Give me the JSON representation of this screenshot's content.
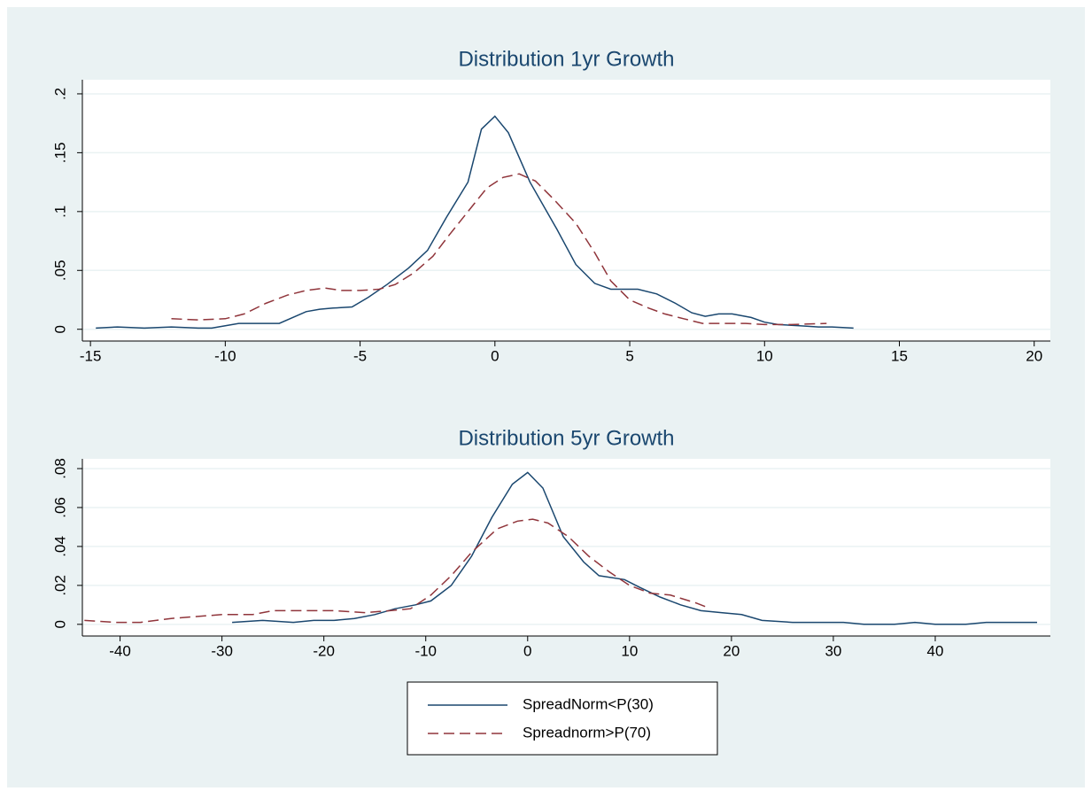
{
  "chart_data": [
    {
      "type": "line",
      "title": "Distribution 1yr Growth",
      "xlim": [
        -15.3,
        20.6
      ],
      "ylim": [
        -0.01,
        0.212
      ],
      "xticks": [
        -15,
        -10,
        -5,
        0,
        5,
        10,
        15,
        20
      ],
      "yticks": [
        0,
        {
          "value": 0.05,
          "label": ".05"
        },
        {
          "value": 0.1,
          "label": ".1"
        },
        {
          "value": 0.15,
          "label": ".15"
        },
        {
          "value": 0.2,
          "label": ".2"
        }
      ],
      "grid": true,
      "series": [
        {
          "name": "SpreadNorm<P(30)",
          "color": "#1a476f",
          "dash": "solid",
          "x": [
            -14.8,
            -14,
            -13,
            -12,
            -11,
            -10.5,
            -10,
            -9.5,
            -9,
            -8,
            -7,
            -6.5,
            -6,
            -5.3,
            -4.7,
            -4,
            -3.2,
            -2.5,
            -1.8,
            -1,
            -0.5,
            0,
            0.5,
            1.3,
            2.3,
            3,
            3.7,
            4.3,
            5.3,
            6,
            6.7,
            7.3,
            7.8,
            8.3,
            8.8,
            9.5,
            10,
            10.5,
            11.3,
            12,
            12.5,
            13.3
          ],
          "values": [
            0.001,
            0.002,
            0.001,
            0.002,
            0.001,
            0.001,
            0.003,
            0.005,
            0.005,
            0.005,
            0.015,
            0.017,
            0.018,
            0.019,
            0.027,
            0.038,
            0.052,
            0.067,
            0.095,
            0.125,
            0.17,
            0.181,
            0.167,
            0.125,
            0.085,
            0.055,
            0.039,
            0.034,
            0.034,
            0.03,
            0.022,
            0.014,
            0.011,
            0.013,
            0.013,
            0.01,
            0.006,
            0.004,
            0.003,
            0.002,
            0.002,
            0.001
          ]
        },
        {
          "name": "Spreadnorm>P(70)",
          "color": "#90353b",
          "dash": "dashed",
          "x": [
            -12,
            -11,
            -10,
            -9.3,
            -8.5,
            -7.7,
            -7,
            -6.3,
            -5.7,
            -5,
            -4.3,
            -3.7,
            -3,
            -2.3,
            -1.7,
            -1,
            -0.3,
            0.3,
            0.9,
            1.5,
            2.2,
            3,
            3.7,
            4.3,
            5,
            5.7,
            6.3,
            7,
            7.7,
            8.5,
            9.3,
            10,
            11,
            12.3
          ],
          "values": [
            0.009,
            0.008,
            0.009,
            0.013,
            0.022,
            0.029,
            0.033,
            0.035,
            0.033,
            0.033,
            0.034,
            0.038,
            0.048,
            0.062,
            0.08,
            0.1,
            0.12,
            0.129,
            0.132,
            0.126,
            0.11,
            0.09,
            0.065,
            0.041,
            0.025,
            0.018,
            0.013,
            0.009,
            0.005,
            0.005,
            0.005,
            0.004,
            0.004,
            0.005
          ]
        }
      ]
    },
    {
      "type": "line",
      "title": "Distribution 5yr Growth",
      "xlim": [
        -43.7,
        51.3
      ],
      "ylim": [
        -0.006,
        0.085
      ],
      "xticks": [
        -40,
        -30,
        -20,
        -10,
        0,
        10,
        20,
        30,
        40
      ],
      "yticks": [
        0,
        {
          "value": 0.02,
          "label": ".02"
        },
        {
          "value": 0.04,
          "label": ".04"
        },
        {
          "value": 0.06,
          "label": ".06"
        },
        {
          "value": 0.08,
          "label": ".08"
        }
      ],
      "grid": true,
      "series": [
        {
          "name": "SpreadNorm<P(30)",
          "color": "#1a476f",
          "dash": "solid",
          "x": [
            -29,
            -26,
            -23,
            -21,
            -19,
            -17,
            -15,
            -13,
            -11,
            -9.5,
            -7.5,
            -5.5,
            -3.5,
            -1.5,
            0,
            1.5,
            3.5,
            5.5,
            7,
            9.5,
            11,
            13,
            15,
            17,
            19,
            21,
            23,
            26,
            28,
            31,
            33,
            36,
            38,
            40,
            43,
            45,
            50
          ],
          "values": [
            0.001,
            0.002,
            0.001,
            0.002,
            0.002,
            0.003,
            0.005,
            0.008,
            0.01,
            0.012,
            0.02,
            0.035,
            0.055,
            0.072,
            0.078,
            0.07,
            0.045,
            0.032,
            0.025,
            0.023,
            0.019,
            0.014,
            0.01,
            0.007,
            0.006,
            0.005,
            0.002,
            0.001,
            0.001,
            0.001,
            0,
            0,
            0.001,
            0,
            0,
            0.001,
            0.001
          ]
        },
        {
          "name": "Spreadnorm>P(70)",
          "color": "#90353b",
          "dash": "dashed",
          "x": [
            -43.5,
            -40.5,
            -38,
            -35,
            -32.5,
            -30,
            -27,
            -25,
            -22,
            -19,
            -16,
            -13.5,
            -11.5,
            -9.5,
            -7.5,
            -5.5,
            -3,
            -1,
            0.5,
            2,
            4,
            6,
            8,
            10,
            12,
            14,
            16.5,
            17.5
          ],
          "values": [
            0.002,
            0.001,
            0.001,
            0.003,
            0.004,
            0.005,
            0.005,
            0.007,
            0.007,
            0.007,
            0.006,
            0.007,
            0.008,
            0.015,
            0.025,
            0.037,
            0.049,
            0.053,
            0.054,
            0.052,
            0.045,
            0.035,
            0.027,
            0.02,
            0.016,
            0.015,
            0.011,
            0.009
          ]
        }
      ]
    }
  ]
}
